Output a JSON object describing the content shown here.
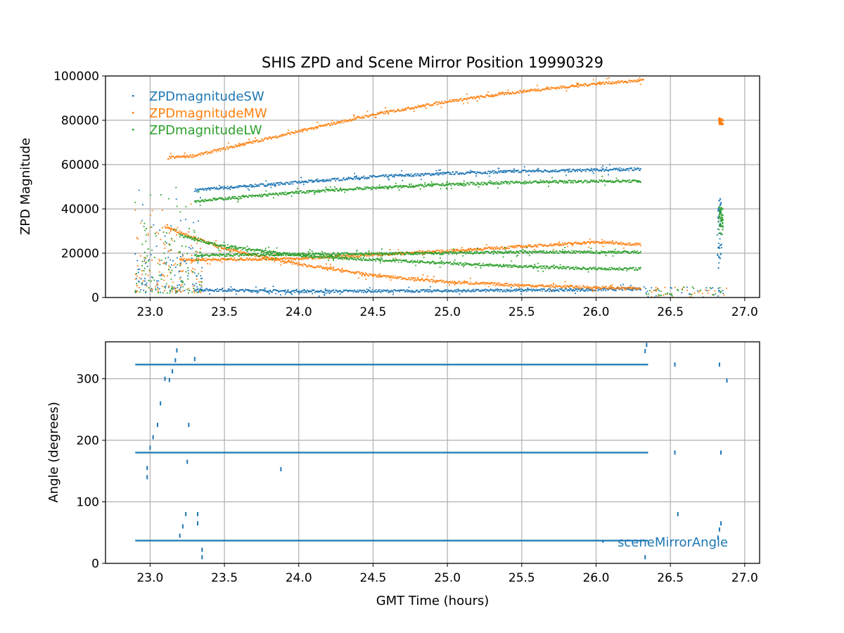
{
  "chart_data": [
    {
      "type": "scatter",
      "title": "SHIS ZPD and Scene Mirror Position 19990329",
      "xlabel": "",
      "ylabel": "ZPD Magnitude",
      "xlim": [
        22.7,
        27.1
      ],
      "ylim": [
        0,
        100000
      ],
      "xticks": [
        23.0,
        23.5,
        24.0,
        24.5,
        25.0,
        25.5,
        26.0,
        26.5,
        27.0
      ],
      "xtick_labels": [
        "23.0",
        "23.5",
        "24.0",
        "24.5",
        "25.0",
        "25.5",
        "26.0",
        "26.5",
        "27.0"
      ],
      "yticks": [
        0,
        20000,
        40000,
        60000,
        80000,
        100000
      ],
      "ytick_labels": [
        "0",
        "20000",
        "40000",
        "60000",
        "80000",
        "100000"
      ],
      "grid": true,
      "legend_position": "top-left",
      "series": [
        {
          "name": "ZPDmagnitudeSW",
          "color": "#1f77b4",
          "bands": [
            {
              "x": [
                23.3,
                23.8,
                24.5,
                25.0,
                25.5,
                26.0,
                26.3
              ],
              "y": [
                48500,
                51000,
                54500,
                56000,
                57000,
                57500,
                58000
              ]
            },
            {
              "x": [
                23.3,
                24.0,
                25.0,
                26.0,
                26.3
              ],
              "y": [
                3500,
                2800,
                3000,
                3500,
                4000
              ]
            }
          ],
          "clusters": [
            {
              "x": 26.83,
              "y": [
                12000,
                45000
              ]
            }
          ]
        },
        {
          "name": "ZPDmagnitudeMW",
          "color": "#ff7f0e",
          "bands": [
            {
              "x": [
                23.12,
                23.3,
                24.0,
                24.5,
                25.0,
                25.5,
                26.0,
                26.32
              ],
              "y": [
                63000,
                64000,
                75000,
                82500,
                88500,
                93000,
                96500,
                98000
              ]
            },
            {
              "x": [
                23.2,
                24.0,
                25.0,
                25.5,
                26.0,
                26.3
              ],
              "y": [
                17000,
                17500,
                21000,
                23000,
                25000,
                24000
              ]
            },
            {
              "x": [
                23.1,
                23.5,
                24.0,
                24.5,
                25.0,
                25.5,
                26.0,
                26.3
              ],
              "y": [
                32000,
                22000,
                15000,
                10000,
                7000,
                5500,
                4500,
                4000
              ]
            }
          ],
          "clusters": [
            {
              "x": 26.84,
              "y": [
                78000,
                81000
              ]
            }
          ]
        },
        {
          "name": "ZPDmagnitudeLW",
          "color": "#2ca02c",
          "bands": [
            {
              "x": [
                23.3,
                24.0,
                24.5,
                25.0,
                25.5,
                26.0,
                26.3
              ],
              "y": [
                43500,
                47500,
                49500,
                51000,
                52000,
                52500,
                52500
              ]
            },
            {
              "x": [
                23.3,
                24.0,
                25.0,
                25.5,
                26.0,
                26.3
              ],
              "y": [
                19000,
                19500,
                20000,
                20500,
                20500,
                20500
              ]
            },
            {
              "x": [
                23.2,
                23.5,
                24.0,
                24.5,
                25.0,
                25.5,
                26.0,
                26.3
              ],
              "y": [
                28000,
                23000,
                19000,
                17000,
                15500,
                14000,
                13000,
                13000
              ]
            }
          ],
          "clusters": [
            {
              "x": 26.84,
              "y": [
                28000,
                42000
              ]
            }
          ]
        }
      ]
    },
    {
      "type": "scatter",
      "title": "",
      "xlabel": "GMT Time (hours)",
      "ylabel": "Angle (degrees)",
      "xlim": [
        22.7,
        27.1
      ],
      "ylim": [
        0,
        360
      ],
      "xticks": [
        23.0,
        23.5,
        24.0,
        24.5,
        25.0,
        25.5,
        26.0,
        26.5,
        27.0
      ],
      "xtick_labels": [
        "23.0",
        "23.5",
        "24.0",
        "24.5",
        "25.0",
        "25.5",
        "26.0",
        "26.5",
        "27.0"
      ],
      "yticks": [
        0,
        100,
        200,
        300
      ],
      "ytick_labels": [
        "0",
        "100",
        "200",
        "300"
      ],
      "grid": true,
      "legend_position": "bottom-right",
      "series": [
        {
          "name": "sceneMirrorAngle",
          "color": "#1f77b4",
          "levels": [
            {
              "y": 323,
              "x_start": 22.9,
              "x_end": 26.35
            },
            {
              "y": 180,
              "x_start": 22.9,
              "x_end": 26.35
            },
            {
              "y": 37,
              "x_start": 22.9,
              "x_end": 26.35
            }
          ],
          "extra_points": [
            {
              "x": 22.98,
              "y": 140
            },
            {
              "x": 22.98,
              "y": 155
            },
            {
              "x": 23.0,
              "y": 188
            },
            {
              "x": 23.02,
              "y": 205
            },
            {
              "x": 23.05,
              "y": 225
            },
            {
              "x": 23.07,
              "y": 260
            },
            {
              "x": 23.1,
              "y": 300
            },
            {
              "x": 23.13,
              "y": 298
            },
            {
              "x": 23.15,
              "y": 312
            },
            {
              "x": 23.17,
              "y": 330
            },
            {
              "x": 23.18,
              "y": 346
            },
            {
              "x": 23.2,
              "y": 45
            },
            {
              "x": 23.22,
              "y": 60
            },
            {
              "x": 23.24,
              "y": 80
            },
            {
              "x": 23.25,
              "y": 165
            },
            {
              "x": 23.26,
              "y": 225
            },
            {
              "x": 23.3,
              "y": 332
            },
            {
              "x": 23.32,
              "y": 65
            },
            {
              "x": 23.32,
              "y": 80
            },
            {
              "x": 23.35,
              "y": 22
            },
            {
              "x": 23.35,
              "y": 10
            },
            {
              "x": 23.88,
              "y": 153
            },
            {
              "x": 26.33,
              "y": 345
            },
            {
              "x": 26.34,
              "y": 355
            },
            {
              "x": 26.33,
              "y": 10
            },
            {
              "x": 26.53,
              "y": 180
            },
            {
              "x": 26.53,
              "y": 323
            },
            {
              "x": 26.55,
              "y": 80
            },
            {
              "x": 26.83,
              "y": 323
            },
            {
              "x": 26.84,
              "y": 180
            },
            {
              "x": 26.84,
              "y": 65
            },
            {
              "x": 26.83,
              "y": 55
            },
            {
              "x": 26.82,
              "y": 42
            },
            {
              "x": 26.88,
              "y": 297
            }
          ]
        }
      ]
    }
  ]
}
